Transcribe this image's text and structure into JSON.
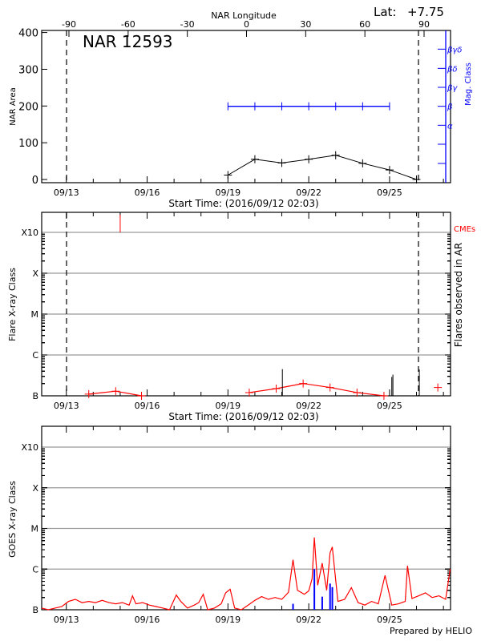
{
  "header": {
    "lat_label": "Lat:",
    "lat_value": "+7.75",
    "longitude_axis_label": "NAR Longitude",
    "footer": "Prepared by HELIO"
  },
  "colors": {
    "area": "#000000",
    "mag_class": "#0000ff",
    "flares_line": "#ff0000",
    "cme": "#ff0000",
    "flare_bars": "#000000",
    "goes_long": "#ff0000",
    "goes_short": "#0000ff",
    "grid": "#999999"
  },
  "chart_data": [
    {
      "type": "line",
      "title": "NAR 12593",
      "xlabel": "Start Time: (2016/09/12 02:03)",
      "ylabel": "NAR Area",
      "y2label": "Mag. Class",
      "x_tick_labels": [
        "09/13",
        "09/16",
        "09/19",
        "09/22",
        "09/25"
      ],
      "y_tick_labels": [
        "0",
        "100",
        "200",
        "300",
        "400"
      ],
      "ylim": [
        0,
        400
      ],
      "top_axis": {
        "label": "NAR Longitude",
        "tick_labels": [
          "-90",
          "-60",
          "-30",
          "0",
          "30",
          "60",
          "90"
        ],
        "limb_markers": [
          "-90",
          "90"
        ]
      },
      "mag_class_ticks": [
        "α",
        "β",
        "βγ",
        "βδ",
        "βγδ"
      ],
      "series": [
        {
          "kind": "area",
          "x": [
            "09/19 00:00",
            "09/20 00:00",
            "09/21 00:00",
            "09/22 00:00",
            "09/23 00:00",
            "09/24 00:00",
            "09/25 00:00",
            "09/26 00:00"
          ],
          "values": [
            12,
            55,
            45,
            55,
            66,
            44,
            26,
            0
          ]
        },
        {
          "kind": "mag_class",
          "x": [
            "09/19 00:00",
            "09/20 00:00",
            "09/21 00:00",
            "09/22 00:00",
            "09/23 00:00",
            "09/24 00:00",
            "09/25 00:00"
          ],
          "values": [
            "β",
            "β",
            "β",
            "β",
            "β",
            "β",
            "β"
          ]
        }
      ]
    },
    {
      "type": "scatter",
      "xlabel": "Start Time: (2016/09/12 02:03)",
      "ylabel": "Flare X-ray Class",
      "y2label": "Flares observed in AR",
      "cme_label": "CMEs",
      "x_tick_labels": [
        "09/13",
        "09/16",
        "09/19",
        "09/22",
        "09/25"
      ],
      "y_tick_labels": [
        "B",
        "C",
        "M",
        "X",
        "X10"
      ],
      "y_scale": "log",
      "grid": true,
      "flare_rate_segments": [
        {
          "x": [
            "09/13 20:00",
            "09/14 20:00",
            "09/15 19:00"
          ],
          "flux": [
            1.1e-07,
            1.3e-07,
            1e-07
          ]
        },
        {
          "x": [
            "09/19 19:00",
            "09/20 19:00",
            "09/21 19:00",
            "09/22 19:00",
            "09/23 19:00",
            "09/24 19:00"
          ],
          "flux": [
            1.2e-07,
            1.5e-07,
            2e-07,
            1.6e-07,
            1.2e-07,
            1e-07
          ]
        },
        {
          "x": [
            "09/26 19:00"
          ],
          "flux": [
            1.6e-07
          ]
        }
      ],
      "flares": [
        {
          "x": "09/21 00:30",
          "flux": 4.5e-07
        },
        {
          "x": "09/25 02:00",
          "flux": 2.9e-07
        },
        {
          "x": "09/25 03:00",
          "flux": 3.3e-07
        },
        {
          "x": "09/26 02:30",
          "flux": 4.4e-07
        }
      ],
      "cmes": [
        {
          "x": "09/15 00:00"
        }
      ]
    },
    {
      "type": "line",
      "ylabel": "GOES X-ray Class",
      "x_tick_labels": [
        "09/13",
        "09/16",
        "09/19",
        "09/22",
        "09/25"
      ],
      "y_tick_labels": [
        "B",
        "C",
        "M",
        "X",
        "X10"
      ],
      "y_scale": "log",
      "grid": true,
      "series": [
        {
          "kind": "goes_long",
          "points": [
            [
              "09/12 02:03",
              1.1e-07
            ],
            [
              "09/12 08:00",
              1e-07
            ],
            [
              "09/12 14:00",
              1.1e-07
            ],
            [
              "09/12 20:00",
              1.2e-07
            ],
            [
              "09/13 02:00",
              1.6e-07
            ],
            [
              "09/13 08:00",
              1.8e-07
            ],
            [
              "09/13 14:00",
              1.5e-07
            ],
            [
              "09/13 20:00",
              1.6e-07
            ],
            [
              "09/14 02:00",
              1.5e-07
            ],
            [
              "09/14 08:00",
              1.7e-07
            ],
            [
              "09/14 14:00",
              1.5e-07
            ],
            [
              "09/14 20:00",
              1.4e-07
            ],
            [
              "09/15 02:00",
              1.5e-07
            ],
            [
              "09/15 08:00",
              1.3e-07
            ],
            [
              "09/15 11:00",
              2.2e-07
            ],
            [
              "09/15 14:00",
              1.4e-07
            ],
            [
              "09/15 20:00",
              1.5e-07
            ],
            [
              "09/16 02:00",
              1.3e-07
            ],
            [
              "09/16 08:00",
              1.2e-07
            ],
            [
              "09/16 14:00",
              1.1e-07
            ],
            [
              "09/16 20:00",
              1e-07
            ],
            [
              "09/17 02:00",
              2.3e-07
            ],
            [
              "09/17 06:00",
              1.6e-07
            ],
            [
              "09/17 12:00",
              1.1e-07
            ],
            [
              "09/17 18:00",
              1.3e-07
            ],
            [
              "09/17 22:00",
              1.5e-07
            ],
            [
              "09/18 02:00",
              2.4e-07
            ],
            [
              "09/18 06:00",
              1e-07
            ],
            [
              "09/18 12:00",
              1.1e-07
            ],
            [
              "09/18 18:00",
              1.4e-07
            ],
            [
              "09/18 22:00",
              2.6e-07
            ],
            [
              "09/19 02:00",
              3.2e-07
            ],
            [
              "09/19 06:00",
              1.1e-07
            ],
            [
              "09/19 12:00",
              1e-07
            ],
            [
              "09/19 18:00",
              1.3e-07
            ],
            [
              "09/20 00:00",
              1.7e-07
            ],
            [
              "09/20 06:00",
              2.1e-07
            ],
            [
              "09/20 12:00",
              1.8e-07
            ],
            [
              "09/20 18:00",
              2e-07
            ],
            [
              "09/21 00:00",
              1.8e-07
            ],
            [
              "09/21 06:00",
              2.7e-07
            ],
            [
              "09/21 10:00",
              1.7e-06
            ],
            [
              "09/21 14:00",
              3e-07
            ],
            [
              "09/21 20:00",
              2.4e-07
            ],
            [
              "09/22 00:00",
              2.9e-07
            ],
            [
              "09/22 03:00",
              5.8e-07
            ],
            [
              "09/22 05:00",
              6e-06
            ],
            [
              "09/22 08:00",
              4e-07
            ],
            [
              "09/22 12:00",
              1.4e-06
            ],
            [
              "09/22 16:00",
              3e-07
            ],
            [
              "09/22 19:00",
              2.5e-06
            ],
            [
              "09/22 21:00",
              3.5e-06
            ],
            [
              "09/23 02:00",
              1.6e-07
            ],
            [
              "09/23 08:00",
              1.8e-07
            ],
            [
              "09/23 14:00",
              3.5e-07
            ],
            [
              "09/23 20:00",
              1.5e-07
            ],
            [
              "09/24 02:00",
              1.3e-07
            ],
            [
              "09/24 08:00",
              1.6e-07
            ],
            [
              "09/24 14:00",
              1.4e-07
            ],
            [
              "09/24 20:00",
              7e-07
            ],
            [
              "09/25 02:00",
              1.3e-07
            ],
            [
              "09/25 08:00",
              1.4e-07
            ],
            [
              "09/25 14:00",
              1.6e-07
            ],
            [
              "09/25 16:00",
              1.2e-06
            ],
            [
              "09/25 20:00",
              1.9e-07
            ],
            [
              "09/26 02:00",
              2.2e-07
            ],
            [
              "09/26 08:00",
              2.6e-07
            ],
            [
              "09/26 14:00",
              2e-07
            ],
            [
              "09/26 20:00",
              2.2e-07
            ],
            [
              "09/27 02:00",
              1.8e-07
            ],
            [
              "09/27 06:00",
              1e-06
            ]
          ]
        },
        {
          "kind": "goes_short",
          "bars": [
            [
              "09/21 10:00",
              1.4e-07
            ],
            [
              "09/22 05:00",
              1e-06
            ],
            [
              "09/22 12:00",
              2.1e-07
            ],
            [
              "09/22 19:00",
              4.4e-07
            ],
            [
              "09/22 21:00",
              3.6e-07
            ]
          ]
        }
      ]
    }
  ]
}
